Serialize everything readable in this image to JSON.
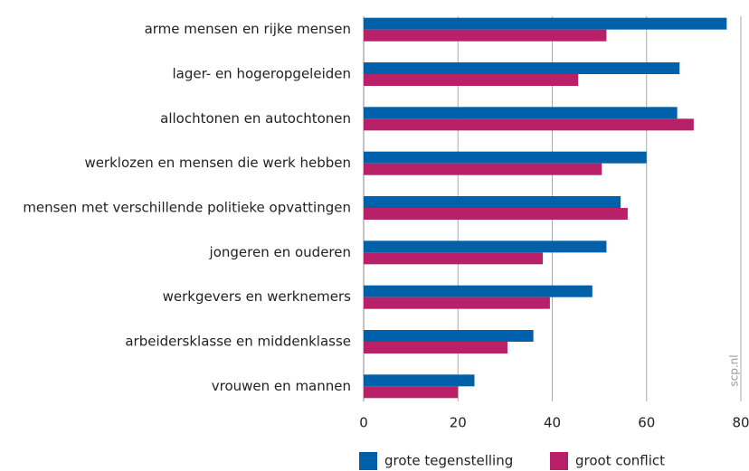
{
  "chart_data": {
    "type": "hbar",
    "categories": [
      "arme mensen en rijke mensen",
      "lager- en hogeropgeleiden",
      "allochtonen en autochtonen",
      "werklozen en mensen die werk hebben",
      "mensen met verschillende politieke opvattingen",
      "jongeren en ouderen",
      "werkgevers en werknemers",
      "arbeidersklasse en middenklasse",
      "vrouwen en mannen"
    ],
    "series": [
      {
        "name": "grote tegenstelling",
        "color": "#0061aa",
        "values": [
          77,
          67,
          66.5,
          60,
          54.5,
          51.5,
          48.5,
          36,
          23.5
        ]
      },
      {
        "name": "groot conflict",
        "color": "#b8206a",
        "values": [
          51.5,
          45.5,
          70,
          50.5,
          56,
          38,
          39.5,
          30.5,
          20
        ]
      }
    ],
    "xlim": [
      0,
      80
    ],
    "xticks": [
      0,
      20,
      40,
      60,
      80
    ],
    "grid": true,
    "legend": "bottom",
    "watermark": "scp.nl"
  }
}
